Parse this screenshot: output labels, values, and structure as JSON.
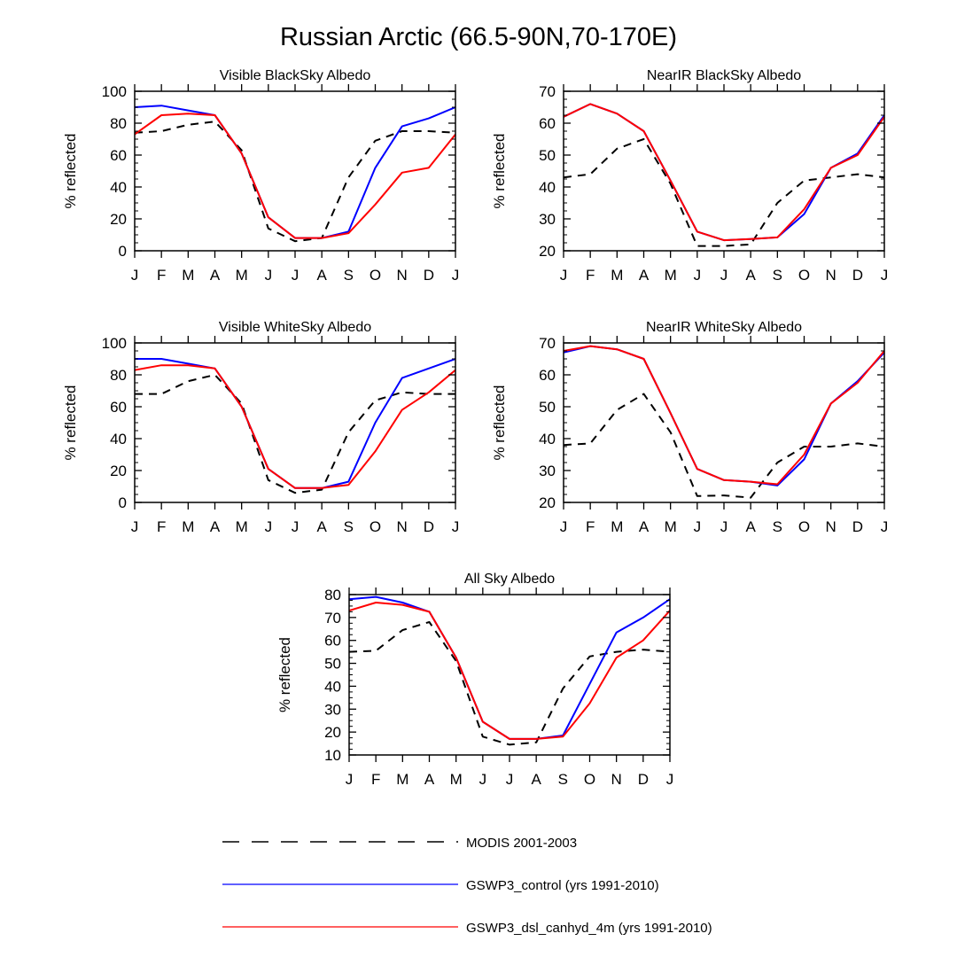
{
  "figure_title": "Russian Arctic (66.5-90N,70-170E)",
  "legend": [
    {
      "label": "MODIS 2001-2003",
      "color": "#000000",
      "style": "dashed"
    },
    {
      "label": "GSWP3_control (yrs 1991-2010)",
      "color": "#0000ff",
      "style": "solid"
    },
    {
      "label": "GSWP3_dsl_canhyd_4m (yrs 1991-2010)",
      "color": "#ff0000",
      "style": "solid"
    }
  ],
  "chart_data": [
    {
      "type": "line",
      "title": "Visible BlackSky Albedo",
      "xlabel": "",
      "ylabel": "% reflected",
      "categories": [
        "J",
        "F",
        "M",
        "A",
        "M",
        "J",
        "J",
        "A",
        "S",
        "O",
        "N",
        "D",
        "J"
      ],
      "ylim": [
        0,
        100
      ],
      "yticks": [
        0,
        20,
        40,
        60,
        80,
        100
      ],
      "grid": false,
      "series": [
        {
          "name": "MODIS 2001-2003",
          "values": [
            74,
            75,
            79,
            81,
            63,
            14,
            6,
            8,
            46,
            69,
            75,
            75,
            74
          ]
        },
        {
          "name": "GSWP3_control (yrs 1991-2010)",
          "values": [
            90,
            91,
            88,
            85,
            61,
            21,
            8,
            8,
            12,
            52,
            78,
            83,
            90
          ]
        },
        {
          "name": "GSWP3_dsl_canhyd_4m (yrs 1991-2010)",
          "values": [
            73,
            85,
            86,
            85,
            61,
            21,
            8,
            8,
            11,
            29,
            49,
            52,
            73
          ]
        }
      ]
    },
    {
      "type": "line",
      "title": "NearIR BlackSky Albedo",
      "xlabel": "",
      "ylabel": "% reflected",
      "categories": [
        "J",
        "F",
        "M",
        "A",
        "M",
        "J",
        "J",
        "A",
        "S",
        "O",
        "N",
        "D",
        "J"
      ],
      "ylim": [
        20,
        70
      ],
      "yticks": [
        20,
        30,
        40,
        50,
        60,
        70
      ],
      "grid": false,
      "series": [
        {
          "name": "MODIS 2001-2003",
          "values": [
            43,
            44,
            52,
            55,
            41,
            21.5,
            21.5,
            22,
            35,
            42,
            43,
            44,
            43
          ]
        },
        {
          "name": "GSWP3_control (yrs 1991-2010)",
          "values": [
            62,
            66,
            63,
            57.5,
            42,
            26,
            23.3,
            23.7,
            24.2,
            31.5,
            46,
            50.5,
            62.5
          ]
        },
        {
          "name": "GSWP3_dsl_canhyd_4m (yrs 1991-2010)",
          "values": [
            62,
            66,
            63,
            57.5,
            42,
            26,
            23.3,
            23.7,
            24.2,
            33,
            46,
            50,
            62
          ]
        }
      ]
    },
    {
      "type": "line",
      "title": "Visible WhiteSky Albedo",
      "xlabel": "",
      "ylabel": "% reflected",
      "categories": [
        "J",
        "F",
        "M",
        "A",
        "M",
        "J",
        "J",
        "A",
        "S",
        "O",
        "N",
        "D",
        "J"
      ],
      "ylim": [
        0,
        100
      ],
      "yticks": [
        0,
        20,
        40,
        60,
        80,
        100
      ],
      "grid": false,
      "series": [
        {
          "name": "MODIS 2001-2003",
          "values": [
            68,
            68,
            76,
            80,
            62,
            14,
            6,
            8,
            44,
            64,
            69,
            68,
            68
          ]
        },
        {
          "name": "GSWP3_control (yrs 1991-2010)",
          "values": [
            90,
            90,
            87,
            84,
            60,
            21,
            9,
            9,
            13,
            50,
            78,
            84,
            90
          ]
        },
        {
          "name": "GSWP3_dsl_canhyd_4m (yrs 1991-2010)",
          "values": [
            83,
            86,
            86,
            84,
            60,
            21,
            9,
            9,
            11,
            32,
            58,
            69,
            83
          ]
        }
      ]
    },
    {
      "type": "line",
      "title": "NearIR WhiteSky Albedo",
      "xlabel": "",
      "ylabel": "% reflected",
      "categories": [
        "J",
        "F",
        "M",
        "A",
        "M",
        "J",
        "J",
        "A",
        "S",
        "O",
        "N",
        "D",
        "J"
      ],
      "ylim": [
        20,
        70
      ],
      "yticks": [
        20,
        30,
        40,
        50,
        60,
        70
      ],
      "grid": false,
      "series": [
        {
          "name": "MODIS 2001-2003",
          "values": [
            38,
            38.5,
            49,
            54,
            42,
            22,
            22.2,
            21.5,
            32.5,
            37.5,
            37.5,
            38.5,
            37.5
          ]
        },
        {
          "name": "GSWP3_control (yrs 1991-2010)",
          "values": [
            67,
            69,
            68,
            65,
            48,
            30.5,
            27,
            26.5,
            25.3,
            33.5,
            51,
            58,
            67
          ]
        },
        {
          "name": "GSWP3_dsl_canhyd_4m (yrs 1991-2010)",
          "values": [
            67.5,
            69,
            68,
            65,
            48,
            30.5,
            27,
            26.5,
            25.7,
            35,
            51,
            57.5,
            67.5
          ]
        }
      ]
    },
    {
      "type": "line",
      "title": "All Sky Albedo",
      "xlabel": "",
      "ylabel": "% reflected",
      "categories": [
        "J",
        "F",
        "M",
        "A",
        "M",
        "J",
        "J",
        "A",
        "S",
        "O",
        "N",
        "D",
        "J"
      ],
      "ylim": [
        10,
        80
      ],
      "yticks": [
        10,
        20,
        30,
        40,
        50,
        60,
        70,
        80
      ],
      "grid": false,
      "series": [
        {
          "name": "MODIS 2001-2003",
          "values": [
            55,
            55.5,
            64.5,
            68,
            51,
            18,
            14.5,
            15.5,
            39,
            53,
            55,
            56,
            55
          ]
        },
        {
          "name": "GSWP3_control (yrs 1991-2010)",
          "values": [
            78,
            79,
            76.5,
            72.5,
            52.5,
            24.5,
            17,
            17,
            18.5,
            41,
            63.5,
            70,
            78
          ]
        },
        {
          "name": "GSWP3_dsl_canhyd_4m (yrs 1991-2010)",
          "values": [
            73,
            76.5,
            75.5,
            72.5,
            52.5,
            24.5,
            17,
            17,
            18,
            32.5,
            52.5,
            60,
            73
          ]
        }
      ]
    }
  ]
}
